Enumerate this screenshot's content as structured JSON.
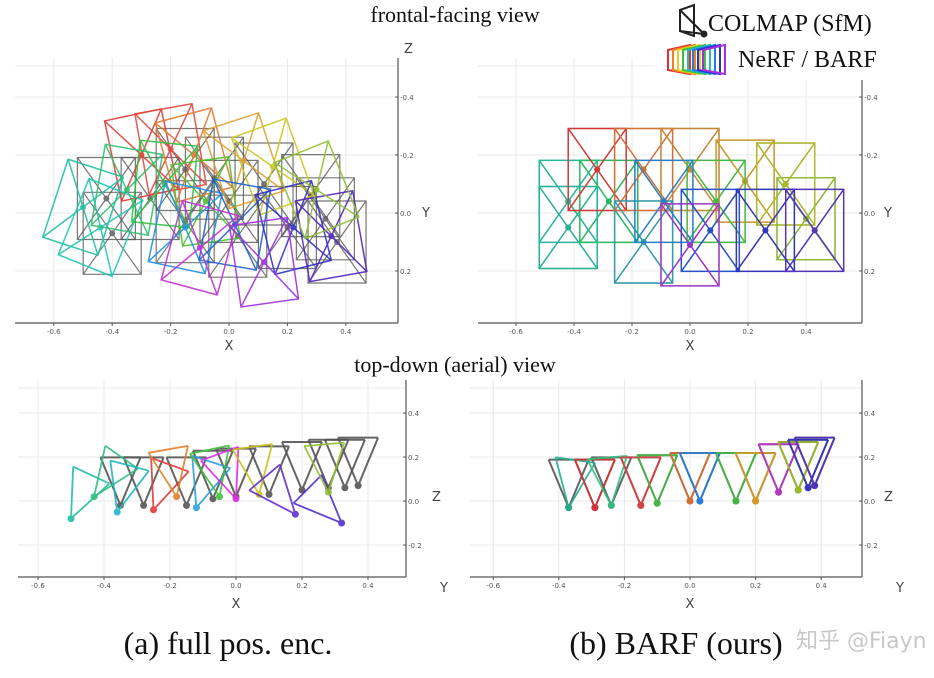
{
  "titles": {
    "frontal": "frontal-facing view",
    "topdown": "top-down (aerial) view"
  },
  "legend": {
    "colmap": "COLMAP (SfM)",
    "nerf": "NeRF / BARF",
    "colmap_color": "#222222",
    "nerf_colors": [
      "#e53030",
      "#f08020",
      "#e0d020",
      "#40c040",
      "#20c0b0",
      "#2080e0",
      "#3030d0",
      "#a030e0"
    ]
  },
  "captions": {
    "a": "(a) full pos. enc.",
    "b": "(b) BARF (ours)"
  },
  "watermark": "知乎 @Fiayn",
  "chart_data": [
    {
      "type": "scatter",
      "panel": "a-frontal",
      "xlabel": "X",
      "ylabel": "Y",
      "zlabel": "Z",
      "xticks": [
        "-0.6",
        "-0.4",
        "-0.2",
        "0.0",
        "0.2",
        "0.4"
      ],
      "yticks": [
        "-0.4",
        "-0.2",
        "0.0",
        "0.2"
      ],
      "xlim": [
        -0.7,
        0.6
      ],
      "ylim": [
        -0.5,
        0.35
      ],
      "gt_color": "#555555",
      "gt": [
        [
          -0.42,
          -0.05
        ],
        [
          -0.4,
          0.07
        ],
        [
          -0.27,
          -0.05
        ],
        [
          -0.15,
          -0.15
        ],
        [
          -0.15,
          0.03
        ],
        [
          -0.05,
          -0.12
        ],
        [
          0.0,
          -0.04
        ],
        [
          0.03,
          0.08
        ],
        [
          0.12,
          -0.1
        ],
        [
          0.2,
          0.05
        ],
        [
          0.28,
          -0.06
        ],
        [
          0.33,
          0.02
        ],
        [
          0.37,
          0.1
        ]
      ],
      "estimated": [
        {
          "x": -0.3,
          "y": -0.2,
          "angle": -12,
          "color": "#e03a3a"
        },
        {
          "x": -0.2,
          "y": -0.22,
          "angle": -10,
          "color": "#e04a40"
        },
        {
          "x": -0.12,
          "y": -0.2,
          "angle": -15,
          "color": "#e07830"
        },
        {
          "x": 0.05,
          "y": -0.18,
          "angle": -18,
          "color": "#e0a030"
        },
        {
          "x": 0.15,
          "y": -0.16,
          "angle": -20,
          "color": "#c8c820"
        },
        {
          "x": -0.5,
          "y": -0.02,
          "angle": 18,
          "color": "#20c0a0"
        },
        {
          "x": -0.44,
          "y": 0.05,
          "angle": 22,
          "color": "#20c8b0"
        },
        {
          "x": -0.35,
          "y": -0.08,
          "angle": 10,
          "color": "#30c070"
        },
        {
          "x": -0.22,
          "y": -0.1,
          "angle": 6,
          "color": "#30c040"
        },
        {
          "x": -0.08,
          "y": -0.04,
          "angle": -8,
          "color": "#50c030"
        },
        {
          "x": -0.15,
          "y": 0.05,
          "angle": 12,
          "color": "#2090e0"
        },
        {
          "x": 0.02,
          "y": 0.04,
          "angle": 10,
          "color": "#2060d0"
        },
        {
          "x": 0.22,
          "y": 0.05,
          "angle": -14,
          "color": "#3030c8"
        },
        {
          "x": 0.35,
          "y": 0.08,
          "angle": -10,
          "color": "#5028c0"
        },
        {
          "x": -0.1,
          "y": 0.12,
          "angle": 15,
          "color": "#c030d0"
        },
        {
          "x": 0.12,
          "y": 0.17,
          "angle": -8,
          "color": "#a030e0"
        },
        {
          "x": 0.3,
          "y": -0.08,
          "angle": -22,
          "color": "#90c030"
        }
      ]
    },
    {
      "type": "scatter",
      "panel": "b-frontal",
      "xlabel": "X",
      "ylabel": "Y",
      "zlabel": "",
      "xticks": [
        "-0.6",
        "-0.4",
        "-0.2",
        "0.0",
        "0.2",
        "0.4"
      ],
      "yticks": [
        "-0.4",
        "-0.2",
        "0.0",
        "0.2"
      ],
      "xlim": [
        -0.7,
        0.6
      ],
      "ylim": [
        -0.5,
        0.35
      ],
      "gt_color": "#555555",
      "estimated": [
        {
          "x": -0.42,
          "y": -0.04,
          "angle": 0,
          "color": "#1fbf9f"
        },
        {
          "x": -0.42,
          "y": 0.05,
          "angle": 0,
          "color": "#20b8a0"
        },
        {
          "x": -0.28,
          "y": -0.04,
          "angle": 0,
          "color": "#22c060"
        },
        {
          "x": -0.32,
          "y": -0.15,
          "angle": 0,
          "color": "#e03030"
        },
        {
          "x": -0.16,
          "y": -0.15,
          "angle": 0,
          "color": "#e07030"
        },
        {
          "x": 0.0,
          "y": -0.15,
          "angle": 0,
          "color": "#d08a30"
        },
        {
          "x": 0.19,
          "y": -0.11,
          "angle": 0,
          "color": "#d0a020"
        },
        {
          "x": 0.33,
          "y": -0.1,
          "angle": 0,
          "color": "#b0c020"
        },
        {
          "x": 0.09,
          "y": -0.04,
          "angle": 0,
          "color": "#40c040"
        },
        {
          "x": 0.4,
          "y": 0.02,
          "angle": 0,
          "color": "#90c030"
        },
        {
          "x": -0.16,
          "y": 0.1,
          "angle": 0,
          "color": "#2a9fb0"
        },
        {
          "x": -0.09,
          "y": -0.04,
          "angle": 0,
          "color": "#2080d0"
        },
        {
          "x": 0.07,
          "y": 0.06,
          "angle": 0,
          "color": "#2050d0"
        },
        {
          "x": 0.26,
          "y": 0.06,
          "angle": 0,
          "color": "#3030c0"
        },
        {
          "x": 0.43,
          "y": 0.06,
          "angle": 0,
          "color": "#5030c0"
        },
        {
          "x": 0.0,
          "y": 0.11,
          "angle": 0,
          "color": "#a030d0"
        }
      ]
    },
    {
      "type": "scatter",
      "panel": "a-topdown",
      "xlabel": "X",
      "ylabel": "Y",
      "zlabel": "Z",
      "xticks": [
        "-0.6",
        "-0.4",
        "-0.2",
        "0.0",
        "0.2",
        "0.4"
      ],
      "zticks": [
        "0.4",
        "0.2",
        "0.0",
        "-0.2"
      ],
      "xlim": [
        -0.7,
        0.6
      ],
      "zlim": [
        -0.3,
        0.5
      ],
      "gt_color": "#555555",
      "gt": [
        [
          -0.35,
          -0.02
        ],
        [
          -0.28,
          -0.02
        ],
        [
          -0.15,
          -0.02
        ],
        [
          -0.07,
          0.01
        ],
        [
          0.0,
          0.02
        ],
        [
          0.1,
          0.03
        ],
        [
          0.2,
          0.05
        ],
        [
          0.28,
          0.06
        ],
        [
          0.33,
          0.06
        ],
        [
          0.37,
          0.07
        ]
      ],
      "estimated": [
        {
          "x": -0.5,
          "z": -0.08,
          "angle": 25,
          "color": "#20c0a0"
        },
        {
          "x": -0.43,
          "z": 0.02,
          "angle": 35,
          "color": "#30c080"
        },
        {
          "x": -0.36,
          "z": -0.05,
          "angle": 15,
          "color": "#20b8c0"
        },
        {
          "x": -0.25,
          "z": -0.04,
          "angle": 20,
          "color": "#e03a3a"
        },
        {
          "x": -0.18,
          "z": 0.02,
          "angle": -10,
          "color": "#e08030"
        },
        {
          "x": -0.12,
          "z": -0.03,
          "angle": 18,
          "color": "#30a0e0"
        },
        {
          "x": -0.05,
          "z": 0.02,
          "angle": -12,
          "color": "#40c040"
        },
        {
          "x": 0.0,
          "z": 0.01,
          "angle": -20,
          "color": "#e030e0"
        },
        {
          "x": 0.07,
          "z": 0.03,
          "angle": -8,
          "color": "#c8c020"
        },
        {
          "x": 0.18,
          "z": -0.06,
          "angle": -40,
          "color": "#6030d0"
        },
        {
          "x": 0.32,
          "z": -0.1,
          "angle": -45,
          "color": "#5030d0"
        },
        {
          "x": 0.28,
          "z": 0.04,
          "angle": -5,
          "color": "#90c030"
        }
      ]
    },
    {
      "type": "scatter",
      "panel": "b-topdown",
      "xlabel": "X",
      "ylabel": "Y",
      "zlabel": "Z",
      "xticks": [
        "-0.6",
        "-0.4",
        "-0.2",
        "0.0",
        "0.2",
        "0.4"
      ],
      "zticks": [
        "0.4",
        "0.2",
        "0.0",
        "-0.2"
      ],
      "xlim": [
        -0.7,
        0.6
      ],
      "zlim": [
        -0.3,
        0.5
      ],
      "gt_color": "#555555",
      "estimated": [
        {
          "x": -0.37,
          "z": -0.03,
          "angle": 8,
          "color": "#20b090"
        },
        {
          "x": -0.29,
          "z": -0.03,
          "angle": 0,
          "color": "#e03030"
        },
        {
          "x": -0.24,
          "z": -0.02,
          "angle": -5,
          "color": "#30c080"
        },
        {
          "x": -0.15,
          "z": -0.02,
          "angle": 0,
          "color": "#e04040"
        },
        {
          "x": -0.1,
          "z": -0.01,
          "angle": 0,
          "color": "#40c040"
        },
        {
          "x": 0.0,
          "z": 0.0,
          "angle": 0,
          "color": "#e07030"
        },
        {
          "x": 0.03,
          "z": 0.0,
          "angle": 0,
          "color": "#2080e0"
        },
        {
          "x": 0.14,
          "z": 0.0,
          "angle": 0,
          "color": "#40c040"
        },
        {
          "x": 0.2,
          "z": 0.0,
          "angle": 0,
          "color": "#e0a020"
        },
        {
          "x": 0.27,
          "z": 0.04,
          "angle": 0,
          "color": "#c030d0"
        },
        {
          "x": 0.33,
          "z": 0.05,
          "angle": 0,
          "color": "#a0c020"
        },
        {
          "x": 0.36,
          "z": 0.06,
          "angle": 0,
          "color": "#3030c0"
        },
        {
          "x": 0.38,
          "z": 0.07,
          "angle": 0,
          "color": "#5030c0"
        }
      ]
    }
  ]
}
